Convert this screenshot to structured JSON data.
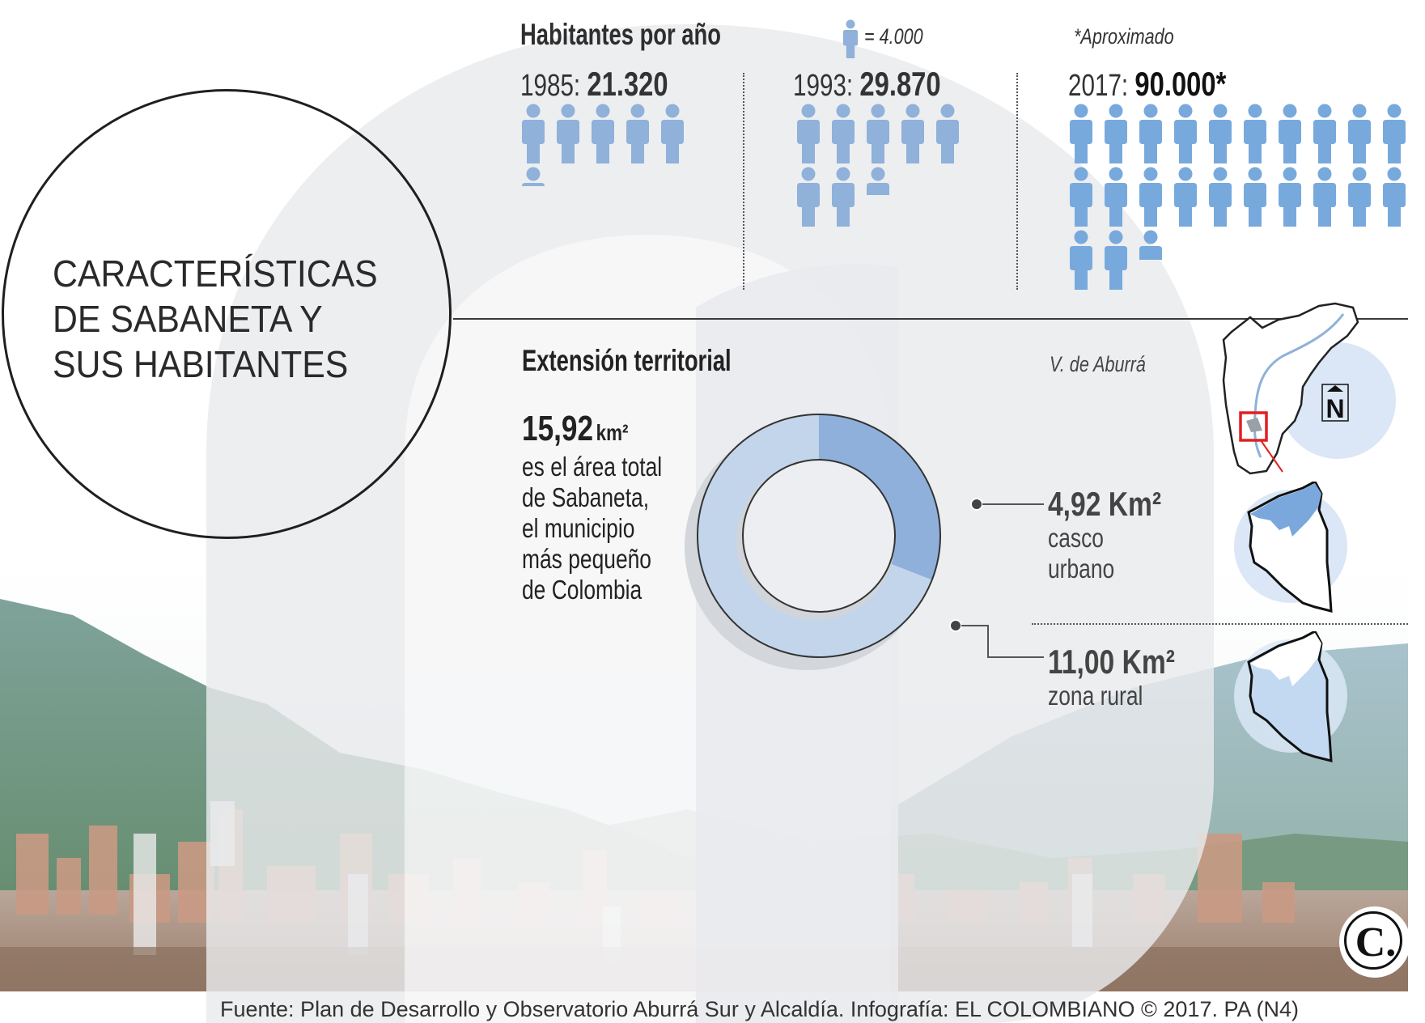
{
  "header": {
    "title_lines": [
      "CARACTERÍSTICAS",
      "DE SABANETA Y",
      "SUS HABITANTES"
    ]
  },
  "population": {
    "title": "Habitantes por año",
    "legend": {
      "icon": "person-icon",
      "text": "= 4.000"
    },
    "note": "*Aproximado",
    "years": [
      {
        "year": "1985:",
        "value": "21.320",
        "icons": 5.33
      },
      {
        "year": "1993:",
        "value": "29.870",
        "icons": 7.47
      },
      {
        "year": "2017:",
        "value": "90.000*",
        "icons": 22.5
      }
    ],
    "icon_color_1985_1993": "#8fb1da",
    "icon_color_2017": "#78a9dd"
  },
  "territory": {
    "title": "Extensión territorial",
    "total_value": "15,92",
    "total_unit": "km²",
    "description_lines": [
      "es el área total",
      "de Sabaneta,",
      "el municipio",
      "más pequeño",
      "de Colombia"
    ],
    "urban": {
      "value": "4,92 Km²",
      "label_lines": [
        "casco",
        "urbano"
      ]
    },
    "rural": {
      "value": "11,00 Km²",
      "label_lines": [
        "zona rural"
      ]
    },
    "map_label": "V. de Aburrá",
    "north_label": "N"
  },
  "footer": {
    "source": "Fuente: Plan de Desarrollo y Observatorio Aburrá Sur y Alcaldía. Infografía: EL COLOMBIANO © 2017. PA (N4)",
    "logo": "C."
  },
  "colors": {
    "urban": "#8fb0da",
    "rural": "#c3d5eb",
    "watermark": "#e9eaed",
    "map_circle": "#dbe7f6"
  },
  "chart_data": [
    {
      "type": "bar",
      "title": "Habitantes por año",
      "categories": [
        "1985",
        "1993",
        "2017"
      ],
      "values": [
        21320,
        29870,
        90000
      ],
      "unit_note": "1 icon = 4.000 habitantes; 2017 value approximate",
      "xlabel": "",
      "ylabel": "Habitantes"
    },
    {
      "type": "pie",
      "title": "Extensión territorial",
      "categories": [
        "casco urbano",
        "zona rural"
      ],
      "values": [
        4.92,
        11.0
      ],
      "total": 15.92,
      "unit": "km²"
    }
  ]
}
